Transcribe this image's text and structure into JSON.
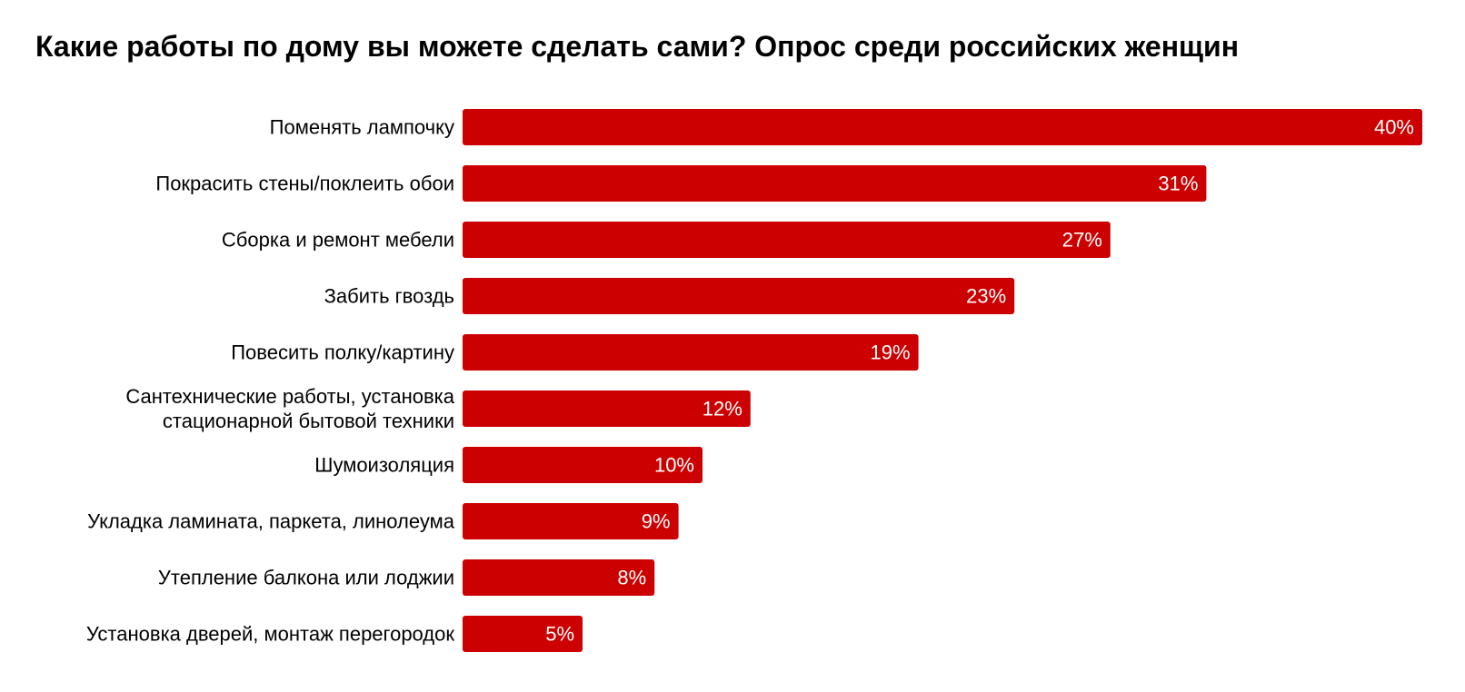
{
  "chart_data": {
    "type": "bar",
    "orientation": "horizontal",
    "title": "Какие работы по дому вы можете сделать сами? Опрос среди российских женщин",
    "categories": [
      "Поменять лампочку",
      "Покрасить стены/поклеить обои",
      "Сборка и ремонт мебели",
      "Забить гвоздь",
      "Повесить полку/картину",
      "Сантехнические работы, установка стационарной бытовой техники",
      "Шумоизоляция",
      "Укладка ламината, паркета, линолеума",
      "Утепление балкона или лоджии",
      "Установка дверей, монтаж перегородок"
    ],
    "category_lines": [
      [
        "Поменять лампочку"
      ],
      [
        "Покрасить стены/поклеить обои"
      ],
      [
        "Сборка и ремонт мебели"
      ],
      [
        "Забить гвоздь"
      ],
      [
        "Повесить полку/картину"
      ],
      [
        "Сантехнические работы, установка",
        "стационарной бытовой техники"
      ],
      [
        "Шумоизоляция"
      ],
      [
        "Укладка ламината, паркета, линолеума"
      ],
      [
        "Утепление балкона или лоджии"
      ],
      [
        "Установка дверей, монтаж перегородок"
      ]
    ],
    "values": [
      40,
      31,
      27,
      23,
      19,
      12,
      10,
      9,
      8,
      5
    ],
    "value_labels": [
      "40%",
      "31%",
      "27%",
      "23%",
      "19%",
      "12%",
      "10%",
      "9%",
      "8%",
      "5%"
    ],
    "unit": "%",
    "xlim": [
      0,
      40
    ],
    "bar_color": "#cc0000",
    "value_label_color": "#ffffff",
    "grid": false,
    "legend": "none"
  }
}
